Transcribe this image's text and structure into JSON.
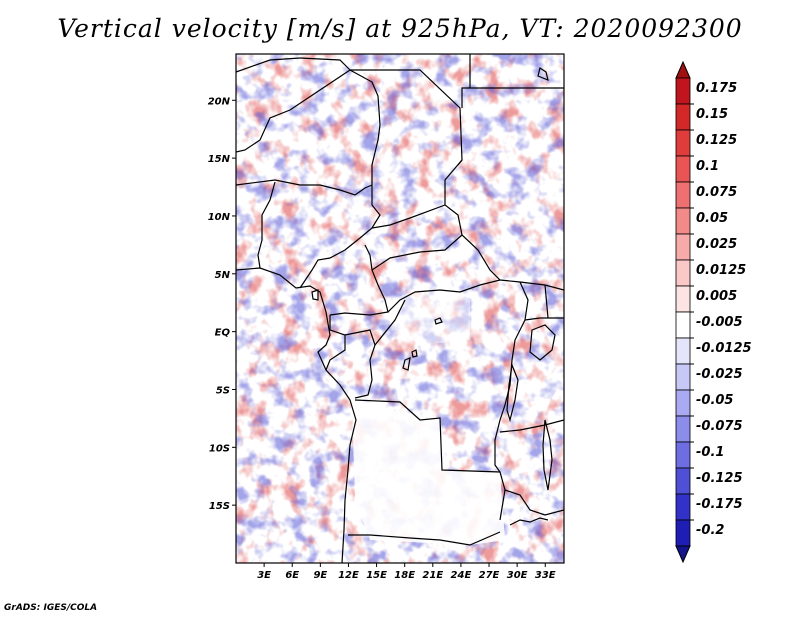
{
  "title": "Vertical velocity [m/s] at 925hPa, VT: 2020092300",
  "footer": "GrADS: IGES/COLA",
  "map": {
    "region": "Central Africa",
    "lon_range": [
      0,
      35
    ],
    "lat_range": [
      -20,
      24
    ],
    "lat_ticks": [
      {
        "value": 20,
        "label": "20N"
      },
      {
        "value": 15,
        "label": "15N"
      },
      {
        "value": 10,
        "label": "10N"
      },
      {
        "value": 5,
        "label": "5N"
      },
      {
        "value": 0,
        "label": "EQ"
      },
      {
        "value": -5,
        "label": "5S"
      },
      {
        "value": -10,
        "label": "10S"
      },
      {
        "value": -15,
        "label": "15S"
      }
    ],
    "lon_ticks": [
      {
        "value": 3,
        "label": "3E"
      },
      {
        "value": 6,
        "label": "6E"
      },
      {
        "value": 9,
        "label": "9E"
      },
      {
        "value": 12,
        "label": "12E"
      },
      {
        "value": 15,
        "label": "15E"
      },
      {
        "value": 18,
        "label": "18E"
      },
      {
        "value": 21,
        "label": "21E"
      },
      {
        "value": 24,
        "label": "24E"
      },
      {
        "value": 27,
        "label": "27E"
      },
      {
        "value": 30,
        "label": "30E"
      },
      {
        "value": 33,
        "label": "33E"
      }
    ]
  },
  "colorbar": {
    "units": "m/s",
    "levels": [
      {
        "label": "0.175",
        "color": "#c0141e"
      },
      {
        "label": "0.15",
        "color": "#d22828"
      },
      {
        "label": "0.125",
        "color": "#e13c3c"
      },
      {
        "label": "0.1",
        "color": "#e95555"
      },
      {
        "label": "0.075",
        "color": "#ef7070"
      },
      {
        "label": "0.05",
        "color": "#f38a8a"
      },
      {
        "label": "0.025",
        "color": "#f7aaaa"
      },
      {
        "label": "0.0125",
        "color": "#fbc8c8"
      },
      {
        "label": "0.005",
        "color": "#fde4e4"
      },
      {
        "label": "-0.005",
        "color": "#ffffff"
      },
      {
        "label": "-0.0125",
        "color": "#e4e4fb"
      },
      {
        "label": "-0.025",
        "color": "#c8c8f7"
      },
      {
        "label": "-0.05",
        "color": "#aaaaf2"
      },
      {
        "label": "-0.075",
        "color": "#8c8ceb"
      },
      {
        "label": "-0.1",
        "color": "#6e6ee2"
      },
      {
        "label": "-0.125",
        "color": "#5050d7"
      },
      {
        "label": "-0.175",
        "color": "#3232c8"
      },
      {
        "label": "-0.2",
        "color": "#1e1eb4"
      }
    ],
    "top_color": "#a01010",
    "bottom_color": "#14148c"
  }
}
